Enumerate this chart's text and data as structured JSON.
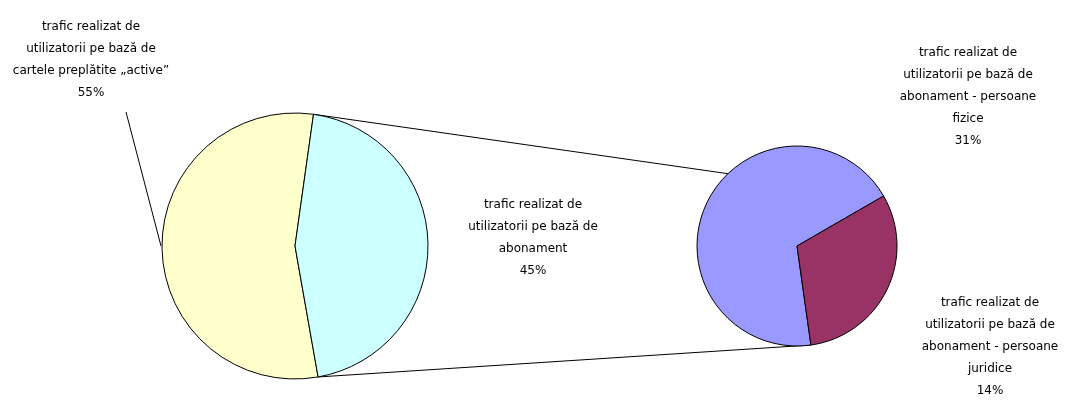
{
  "chart_data": [
    {
      "type": "pie",
      "categories": [
        "trafic realizat de\nutilizatorii pe bază de\ncartele preplătite „active”",
        "trafic realizat de\nutilizatorii pe bază de\nabonament"
      ],
      "values": [
        55,
        45
      ],
      "value_labels": [
        "55%",
        "45%"
      ],
      "colors": [
        "#ffffcc",
        "#ccffff"
      ]
    },
    {
      "type": "pie",
      "categories": [
        "trafic realizat de\nutilizatorii pe bază de\nabonament - persoane\nfizice",
        "trafic realizat de\nutilizatorii pe bază de\nabonament - persoane\njuridice"
      ],
      "values": [
        31,
        14
      ],
      "value_labels": [
        "31%",
        "14%"
      ],
      "colors": [
        "#9999ff",
        "#993366"
      ]
    }
  ]
}
